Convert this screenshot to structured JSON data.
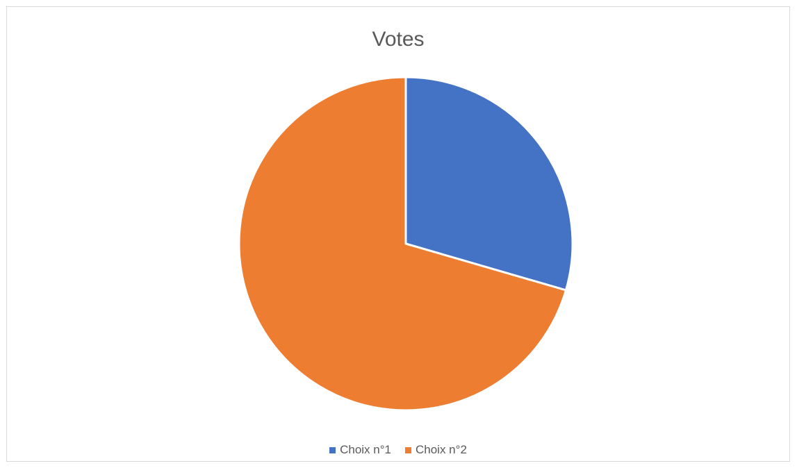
{
  "chart_data": {
    "type": "pie",
    "title": "Votes",
    "categories": [
      "Choix n°1",
      "Choix n°2"
    ],
    "values": [
      29.5,
      70.5
    ],
    "colors": [
      "#4472C4",
      "#ED7D31"
    ],
    "legend_position": "bottom"
  }
}
